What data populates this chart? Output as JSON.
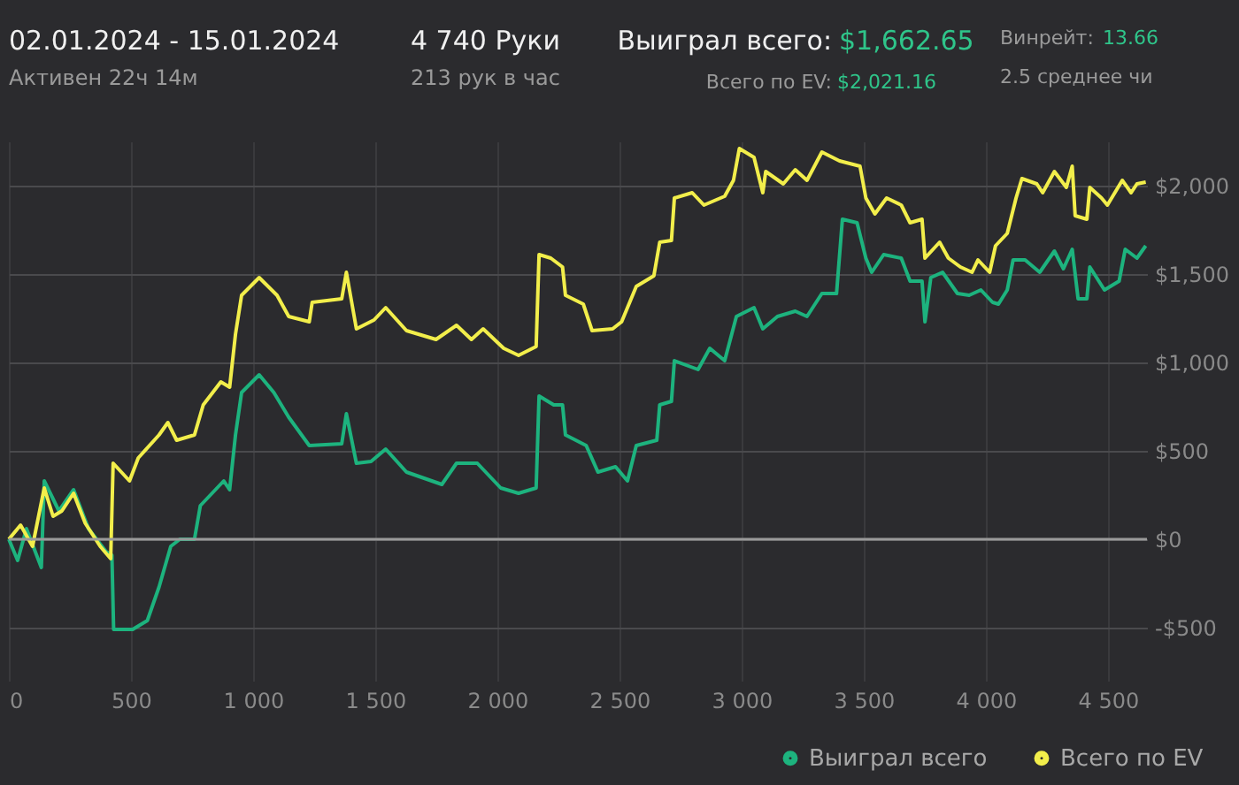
{
  "chart_data": {
    "type": "line",
    "title": "02.01.2024 - 15.01.2024",
    "subtitle": "Активен 22ч 14м",
    "annotations": [
      "4 740 Руки",
      "213 рук в час",
      "Выиграл всего:",
      "$1,662.65",
      "Всего по EV:",
      "$2,021.16",
      "Винрейт:",
      "13.66",
      "2.5 среднее чи"
    ],
    "series": [
      {
        "name": "Выиграл всего",
        "color": "#1db37e",
        "x": [
          0,
          36,
          72,
          133,
          145,
          205,
          265,
          326,
          398,
          422,
          429,
          507,
          567,
          615,
          663,
          700,
          760,
          784,
          832,
          880,
          904,
          928,
          953,
          1025,
          1085,
          1146,
          1230,
          1363,
          1382,
          1423,
          1483,
          1543,
          1628,
          1773,
          1833,
          1918,
          2014,
          2087,
          2159,
          2171,
          2231,
          2267,
          2279,
          2364,
          2412,
          2484,
          2533,
          2569,
          2653,
          2665,
          2713,
          2725,
          2822,
          2870,
          2931,
          2979,
          3051,
          3087,
          3147,
          3220,
          3268,
          3329,
          3389,
          3413,
          3473,
          3509,
          3533,
          3582,
          3654,
          3690,
          3739,
          3751,
          3775,
          3823,
          3884,
          3932,
          3980,
          4028,
          4052,
          4088,
          4112,
          4161,
          4221,
          4281,
          4318,
          4354,
          4378,
          4414,
          4426,
          4486,
          4546,
          4571,
          4619,
          4655
        ],
        "values": [
          0,
          -120,
          60,
          -160,
          330,
          160,
          280,
          60,
          -70,
          -90,
          -510,
          -510,
          -460,
          -270,
          -40,
          0,
          0,
          190,
          260,
          330,
          280,
          590,
          830,
          930,
          830,
          690,
          530,
          540,
          710,
          430,
          440,
          510,
          380,
          310,
          430,
          430,
          290,
          260,
          290,
          810,
          760,
          760,
          590,
          530,
          380,
          410,
          330,
          530,
          560,
          760,
          780,
          1010,
          960,
          1080,
          1010,
          1260,
          1310,
          1190,
          1260,
          1290,
          1260,
          1390,
          1390,
          1810,
          1790,
          1590,
          1510,
          1610,
          1590,
          1460,
          1460,
          1230,
          1480,
          1510,
          1390,
          1380,
          1410,
          1340,
          1330,
          1410,
          1580,
          1580,
          1510,
          1630,
          1530,
          1640,
          1360,
          1360,
          1540,
          1410,
          1460,
          1640,
          1590,
          1660
        ]
      },
      {
        "name": "Всего по EV",
        "color": "#f2ee4b",
        "x": [
          0,
          48,
          97,
          145,
          181,
          217,
          265,
          313,
          374,
          417,
          427,
          494,
          530,
          615,
          651,
          687,
          760,
          796,
          868,
          904,
          928,
          953,
          1025,
          1098,
          1146,
          1230,
          1242,
          1363,
          1382,
          1423,
          1495,
          1543,
          1628,
          1749,
          1833,
          1894,
          1942,
          2026,
          2087,
          2159,
          2171,
          2219,
          2267,
          2279,
          2352,
          2388,
          2472,
          2509,
          2569,
          2641,
          2665,
          2713,
          2725,
          2798,
          2846,
          2931,
          2967,
          2991,
          3051,
          3087,
          3099,
          3171,
          3220,
          3268,
          3329,
          3401,
          3485,
          3509,
          3546,
          3594,
          3654,
          3690,
          3739,
          3751,
          3811,
          3847,
          3896,
          3944,
          3968,
          4016,
          4040,
          4088,
          4124,
          4148,
          4209,
          4233,
          4281,
          4330,
          4354,
          4366,
          4414,
          4426,
          4474,
          4498,
          4559,
          4595,
          4619,
          4655
        ],
        "values": [
          0,
          80,
          -40,
          290,
          130,
          160,
          260,
          90,
          -40,
          -110,
          430,
          330,
          460,
          590,
          660,
          560,
          590,
          760,
          890,
          860,
          1160,
          1380,
          1480,
          1380,
          1260,
          1230,
          1340,
          1360,
          1510,
          1190,
          1240,
          1310,
          1180,
          1130,
          1210,
          1130,
          1190,
          1080,
          1040,
          1090,
          1610,
          1590,
          1540,
          1380,
          1330,
          1180,
          1190,
          1230,
          1430,
          1490,
          1680,
          1690,
          1930,
          1960,
          1890,
          1940,
          2030,
          2210,
          2160,
          1960,
          2080,
          2010,
          2090,
          2030,
          2190,
          2140,
          2110,
          1930,
          1840,
          1930,
          1890,
          1790,
          1810,
          1590,
          1680,
          1590,
          1540,
          1510,
          1580,
          1510,
          1660,
          1730,
          1930,
          2040,
          2010,
          1960,
          2080,
          1990,
          2110,
          1830,
          1810,
          1990,
          1930,
          1890,
          2030,
          1960,
          2010,
          2020
        ]
      }
    ],
    "xlim": [
      0,
      4660
    ],
    "xticks": [
      0,
      500,
      {
        "value": 1000,
        "label": "1 000"
      },
      {
        "value": 1500,
        "label": "1 500"
      },
      {
        "value": 2000,
        "label": "2 000"
      },
      {
        "value": 2500,
        "label": "2 500"
      },
      {
        "value": 3000,
        "label": "3 000"
      },
      {
        "value": 3500,
        "label": "3 500"
      },
      {
        "value": 4000,
        "label": "4 000"
      },
      {
        "value": 4500,
        "label": "4 500"
      }
    ],
    "ylim": [
      -800,
      2250
    ],
    "yticks": [
      {
        "value": -500,
        "label": "-$500"
      },
      {
        "value": 0,
        "label": "$0"
      },
      {
        "value": 500,
        "label": "$500"
      },
      {
        "value": 1000,
        "label": "$1,000"
      },
      {
        "value": 1500,
        "label": "$1,500"
      },
      {
        "value": 2000,
        "label": "$2,000"
      }
    ],
    "ref_lines": [
      {
        "axis": "y",
        "value": 0,
        "color": "#9a9a9a"
      }
    ],
    "grid": true,
    "legend": "bottom right"
  }
}
